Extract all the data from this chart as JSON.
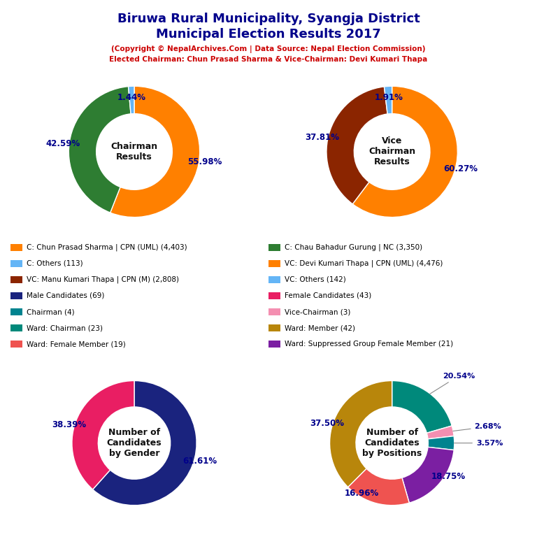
{
  "title_line1": "Biruwa Rural Municipality, Syangja District",
  "title_line2": "Municipal Election Results 2017",
  "subtitle1": "(Copyright © NepalArchives.Com | Data Source: Nepal Election Commission)",
  "subtitle2": "Elected Chairman: Chun Prasad Sharma & Vice-Chairman: Devi Kumari Thapa",
  "title_color": "#00008B",
  "subtitle_color": "#CC0000",
  "chairman_values": [
    55.98,
    42.59,
    1.44
  ],
  "chairman_colors": [
    "#FF8000",
    "#2E7D32",
    "#64B5F6"
  ],
  "chairman_pcts": [
    "55.98%",
    "42.59%",
    "1.44%"
  ],
  "chairman_center": "Chairman\nResults",
  "vc_values": [
    60.27,
    37.81,
    1.91
  ],
  "vc_colors": [
    "#FF8000",
    "#8B2500",
    "#64B5F6"
  ],
  "vc_pcts": [
    "60.27%",
    "37.81%",
    "1.91%"
  ],
  "vc_center": "Vice\nChairman\nResults",
  "gender_values": [
    61.61,
    38.39
  ],
  "gender_colors": [
    "#1A237E",
    "#E91E63"
  ],
  "gender_pcts": [
    "61.61%",
    "38.39%"
  ],
  "gender_center": "Number of\nCandidates\nby Gender",
  "pos_values": [
    20.54,
    2.68,
    3.57,
    18.75,
    16.96,
    37.5
  ],
  "pos_colors": [
    "#00897B",
    "#F48FB1",
    "#00838F",
    "#7B1FA2",
    "#EF5350",
    "#B8860B"
  ],
  "pos_pcts": [
    "20.54%",
    "2.68%",
    "3.57%",
    "18.75%",
    "16.96%",
    "37.50%"
  ],
  "pos_center": "Number of\nCandidates\nby Positions",
  "legend_left": [
    {
      "label": "C: Chun Prasad Sharma | CPN (UML) (4,403)",
      "color": "#FF8000"
    },
    {
      "label": "C: Others (113)",
      "color": "#64B5F6"
    },
    {
      "label": "VC: Manu Kumari Thapa | CPN (M) (2,808)",
      "color": "#8B2500"
    },
    {
      "label": "Male Candidates (69)",
      "color": "#1A237E"
    },
    {
      "label": "Chairman (4)",
      "color": "#00838F"
    },
    {
      "label": "Ward: Chairman (23)",
      "color": "#00897B"
    },
    {
      "label": "Ward: Female Member (19)",
      "color": "#EF5350"
    }
  ],
  "legend_right": [
    {
      "label": "C: Chau Bahadur Gurung | NC (3,350)",
      "color": "#2E7D32"
    },
    {
      "label": "VC: Devi Kumari Thapa | CPN (UML) (4,476)",
      "color": "#FF8000"
    },
    {
      "label": "VC: Others (142)",
      "color": "#64B5F6"
    },
    {
      "label": "Female Candidates (43)",
      "color": "#E91E63"
    },
    {
      "label": "Vice-Chairman (3)",
      "color": "#F48FB1"
    },
    {
      "label": "Ward: Member (42)",
      "color": "#B8860B"
    },
    {
      "label": "Ward: Suppressed Group Female Member (21)",
      "color": "#7B1FA2"
    }
  ]
}
